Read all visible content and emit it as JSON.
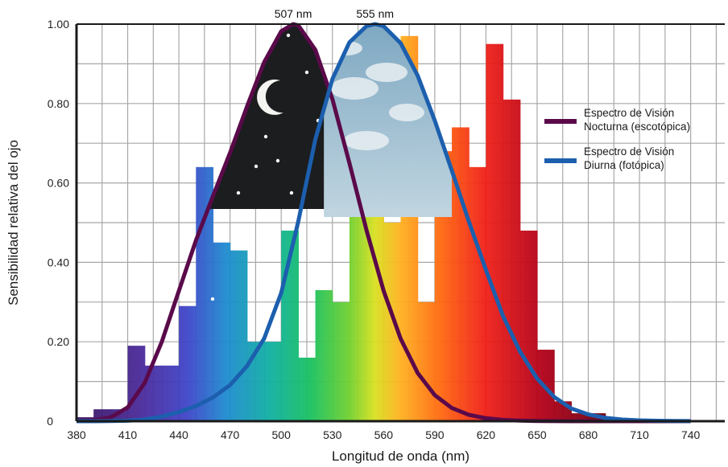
{
  "chart_data": {
    "type": "line",
    "xlabel": "Longitud de onda (nm)",
    "ylabel": "Sensibilidad relativa del ojo",
    "xlim": [
      380,
      760
    ],
    "ylim": [
      0,
      1.0
    ],
    "x_ticks": [
      380,
      410,
      440,
      470,
      500,
      530,
      560,
      590,
      620,
      650,
      680,
      710,
      740
    ],
    "x_tick_labels": [
      "380",
      "410",
      "440",
      "470",
      "500",
      "530",
      "560",
      "590",
      "620",
      "650",
      "680",
      "710",
      "740"
    ],
    "y_ticks": [
      0,
      0.2,
      0.4,
      0.6,
      0.8,
      1.0
    ],
    "y_tick_labels": [
      "0",
      "0.20",
      "0.40",
      "0.60",
      "0.80",
      "1.00"
    ],
    "x_minor_step": 15,
    "y_minor_step": 0.1,
    "grid": true,
    "legend_position": "right",
    "series": [
      {
        "name": "Espectro de Visión Nocturna (escotópica)",
        "legend_lines": [
          "Espectro de Visión",
          "Nocturna (escotópica)"
        ],
        "color": "#5a0a4a",
        "peak_x": 507,
        "peak_label": "507 nm",
        "x": [
          380,
          390,
          400,
          410,
          420,
          430,
          440,
          450,
          460,
          470,
          480,
          490,
          500,
          507,
          510,
          520,
          530,
          540,
          550,
          560,
          570,
          580,
          590,
          600,
          610,
          620,
          630,
          640,
          650,
          660,
          670,
          680,
          690,
          700,
          710,
          720,
          730,
          740
        ],
        "y": [
          0.0006,
          0.0022,
          0.0093,
          0.0348,
          0.0966,
          0.1998,
          0.3281,
          0.455,
          0.567,
          0.676,
          0.793,
          0.904,
          0.982,
          1.0,
          0.997,
          0.935,
          0.811,
          0.65,
          0.481,
          0.3288,
          0.2076,
          0.1212,
          0.0655,
          0.0332,
          0.0159,
          0.0074,
          0.0033,
          0.0015,
          0.0007,
          0.0003,
          0.0001,
          0.0001,
          0.0,
          0.0,
          0.0,
          0.0,
          0.0,
          0.0
        ]
      },
      {
        "name": "Espectro de Visión Diurna (fotópica)",
        "legend_lines": [
          "Espectro de Visión",
          "Diurna (fotópica)"
        ],
        "color": "#1c5fae",
        "peak_x": 555,
        "peak_label": "555 nm",
        "x": [
          380,
          390,
          400,
          410,
          420,
          430,
          440,
          450,
          460,
          470,
          480,
          490,
          500,
          510,
          520,
          530,
          540,
          550,
          555,
          560,
          570,
          580,
          590,
          600,
          610,
          620,
          630,
          640,
          650,
          660,
          670,
          680,
          690,
          700,
          710,
          720,
          730,
          740
        ],
        "y": [
          0.0,
          0.0001,
          0.0004,
          0.0012,
          0.004,
          0.0116,
          0.023,
          0.038,
          0.06,
          0.091,
          0.139,
          0.208,
          0.323,
          0.503,
          0.71,
          0.862,
          0.954,
          0.995,
          1.0,
          0.995,
          0.952,
          0.87,
          0.757,
          0.631,
          0.503,
          0.381,
          0.265,
          0.175,
          0.107,
          0.061,
          0.032,
          0.017,
          0.0082,
          0.0041,
          0.0021,
          0.00105,
          0.00052,
          0.00025
        ]
      }
    ],
    "background": {
      "description": "rainbow spectrum bars with night-sky and day-sky imagery",
      "spectrum_bar_heights": [
        0.01,
        0.03,
        0.03,
        0.19,
        0.14,
        0.14,
        0.29,
        0.64,
        0.45,
        0.43,
        0.2,
        0.2,
        0.48,
        0.16,
        0.33,
        0.3,
        0.57,
        0.55,
        0.5,
        0.97,
        0.3,
        0.68,
        0.74,
        0.64,
        0.95,
        0.81,
        0.48,
        0.18,
        0.05,
        0.02,
        0.02,
        0.0,
        0.0,
        0.0,
        0.0,
        0.0,
        0.0,
        0.0
      ]
    }
  }
}
